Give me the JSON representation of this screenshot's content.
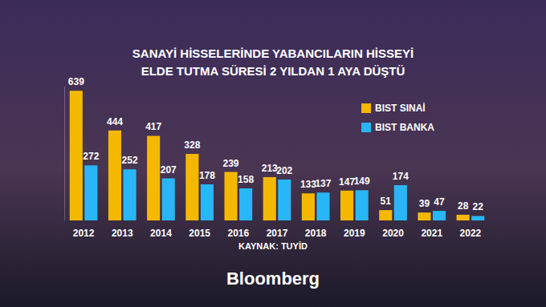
{
  "chart_data": {
    "type": "bar",
    "title": "SANAYİ HİSSELERİNDE YABANCILARIN HİSSEYİ\nELDE TUTMA SÜRESİ 2 YILDAN 1 AYA DÜŞTÜ",
    "source": "KAYNAK: TUYİD",
    "brand": "Bloomberg",
    "categories": [
      "2012",
      "2013",
      "2014",
      "2015",
      "2016",
      "2017",
      "2018",
      "2019",
      "2020",
      "2021",
      "2022"
    ],
    "series": [
      {
        "name": "BIST SINAİ",
        "color": "#f5b800",
        "values": [
          639,
          444,
          417,
          328,
          239,
          213,
          133,
          147,
          51,
          39,
          28
        ]
      },
      {
        "name": "BIST BANKA",
        "color": "#29b6f6",
        "values": [
          272,
          252,
          207,
          178,
          158,
          202,
          137,
          149,
          174,
          47,
          22
        ]
      }
    ],
    "ylim": [
      0,
      660
    ],
    "grid": false,
    "legend": "right",
    "data_labels": true,
    "tick_labels": "x"
  }
}
